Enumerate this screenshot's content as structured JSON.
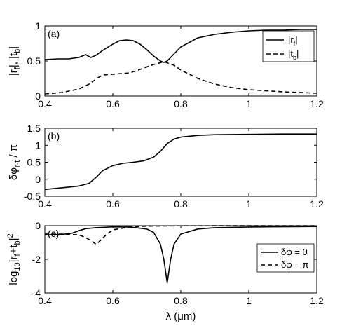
{
  "chart_data": [
    {
      "type": "line",
      "panel_label": "(a)",
      "ylabel": "|r_f|, |t_b|",
      "xlabel": "",
      "xlim": [
        0.4,
        1.2
      ],
      "ylim": [
        0,
        1
      ],
      "xticks": [
        "0.4",
        "0.6",
        "0.8",
        "1",
        "1.2"
      ],
      "yticks": [
        "0",
        "0.5",
        "1"
      ],
      "legend_position": "top-right",
      "series": [
        {
          "name": "|r_f|",
          "style": "solid",
          "x": [
            0.4,
            0.44,
            0.47,
            0.5,
            0.52,
            0.535,
            0.55,
            0.57,
            0.6,
            0.62,
            0.64,
            0.66,
            0.68,
            0.7,
            0.72,
            0.74,
            0.75,
            0.76,
            0.78,
            0.8,
            0.85,
            0.9,
            0.95,
            1.0,
            1.05,
            1.1,
            1.15,
            1.2
          ],
          "y": [
            0.52,
            0.53,
            0.53,
            0.55,
            0.59,
            0.55,
            0.58,
            0.65,
            0.74,
            0.79,
            0.8,
            0.79,
            0.74,
            0.66,
            0.57,
            0.5,
            0.48,
            0.5,
            0.6,
            0.7,
            0.83,
            0.88,
            0.91,
            0.93,
            0.94,
            0.94,
            0.95,
            0.95
          ]
        },
        {
          "name": "|t_b|",
          "style": "dashed",
          "x": [
            0.4,
            0.45,
            0.5,
            0.53,
            0.55,
            0.57,
            0.6,
            0.65,
            0.68,
            0.72,
            0.75,
            0.78,
            0.8,
            0.85,
            0.9,
            0.95,
            1.0,
            1.1,
            1.2
          ],
          "y": [
            0.03,
            0.05,
            0.1,
            0.17,
            0.24,
            0.3,
            0.31,
            0.33,
            0.38,
            0.45,
            0.49,
            0.44,
            0.37,
            0.25,
            0.17,
            0.12,
            0.09,
            0.06,
            0.04
          ]
        }
      ]
    },
    {
      "type": "line",
      "panel_label": "(b)",
      "ylabel": "δφ_r-t / π",
      "xlabel": "",
      "xlim": [
        0.4,
        1.2
      ],
      "ylim": [
        -0.5,
        1.5
      ],
      "xticks": [
        "0.4",
        "0.6",
        "0.8",
        "1",
        "1.2"
      ],
      "yticks": [
        "-0.5",
        "0",
        "0.5",
        "1",
        "1.5"
      ],
      "series": [
        {
          "name": "",
          "style": "solid",
          "x": [
            0.4,
            0.45,
            0.5,
            0.53,
            0.55,
            0.57,
            0.6,
            0.63,
            0.66,
            0.69,
            0.72,
            0.74,
            0.76,
            0.78,
            0.8,
            0.85,
            0.9,
            1.0,
            1.1,
            1.2
          ],
          "y": [
            -0.3,
            -0.25,
            -0.2,
            -0.12,
            0.05,
            0.25,
            0.4,
            0.47,
            0.5,
            0.54,
            0.65,
            0.82,
            1.05,
            1.18,
            1.24,
            1.29,
            1.31,
            1.32,
            1.33,
            1.33
          ]
        }
      ]
    },
    {
      "type": "line",
      "panel_label": "(c)",
      "ylabel": "log10|r_f+t_b|^2",
      "xlabel": "λ (μm)",
      "xlim": [
        0.4,
        1.2
      ],
      "ylim": [
        -4,
        0
      ],
      "xticks": [
        "0.4",
        "0.6",
        "0.8",
        "1",
        "1.2"
      ],
      "yticks": [
        "-4",
        "-2",
        "0"
      ],
      "legend_position": "right",
      "series": [
        {
          "name": "δφ = 0",
          "style": "solid",
          "x": [
            0.4,
            0.45,
            0.48,
            0.5,
            0.52,
            0.55,
            0.6,
            0.65,
            0.7,
            0.72,
            0.74,
            0.75,
            0.76,
            0.77,
            0.78,
            0.8,
            0.85,
            0.9,
            1.0,
            1.2
          ],
          "y": [
            -0.55,
            -0.52,
            -0.45,
            -0.3,
            -0.18,
            -0.12,
            -0.07,
            -0.08,
            -0.2,
            -0.4,
            -1.1,
            -2.0,
            -3.4,
            -2.0,
            -1.1,
            -0.5,
            -0.2,
            -0.12,
            -0.08,
            -0.05
          ]
        },
        {
          "name": "δφ = π",
          "style": "dashed",
          "x": [
            0.4,
            0.46,
            0.5,
            0.52,
            0.54,
            0.55,
            0.56,
            0.58,
            0.6,
            0.65,
            0.7,
            0.8,
            1.0,
            1.2
          ],
          "y": [
            -0.5,
            -0.5,
            -0.55,
            -0.7,
            -0.95,
            -1.1,
            -0.95,
            -0.55,
            -0.25,
            -0.08,
            -0.03,
            -0.01,
            0,
            0
          ]
        }
      ]
    }
  ]
}
